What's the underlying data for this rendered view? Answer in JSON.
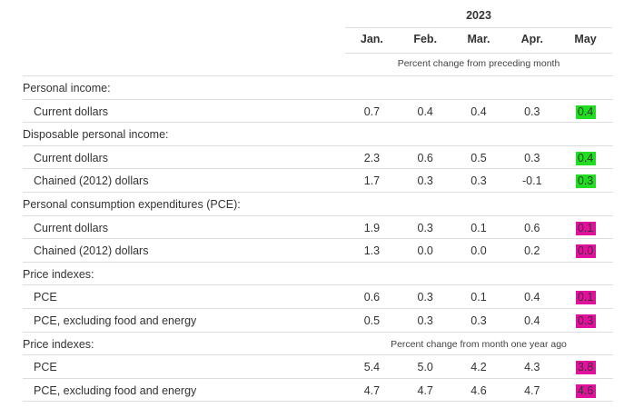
{
  "header": {
    "year": "2023",
    "months": [
      "Jan.",
      "Feb.",
      "Mar.",
      "Apr.",
      "May"
    ],
    "note_monthly": "Percent change from preceding month",
    "note_yearly": "Percent change from month one year ago"
  },
  "highlight_colors": {
    "up": "#22dd22",
    "down": "#e0129c"
  },
  "rows": [
    {
      "type": "category",
      "label": "Personal income:"
    },
    {
      "type": "item",
      "label": "Current dollars",
      "values": [
        "0.7",
        "0.4",
        "0.4",
        "0.3",
        "0.4"
      ],
      "highlight": "up"
    },
    {
      "type": "category",
      "label": "Disposable personal income:"
    },
    {
      "type": "item",
      "label": "Current dollars",
      "values": [
        "2.3",
        "0.6",
        "0.5",
        "0.3",
        "0.4"
      ],
      "highlight": "up"
    },
    {
      "type": "item",
      "label": "Chained (2012) dollars",
      "values": [
        "1.7",
        "0.3",
        "0.3",
        "-0.1",
        "0.3"
      ],
      "highlight": "up"
    },
    {
      "type": "category",
      "label": "Personal consumption expenditures (PCE):"
    },
    {
      "type": "item",
      "label": "Current dollars",
      "values": [
        "1.9",
        "0.3",
        "0.1",
        "0.6",
        "0.1"
      ],
      "highlight": "down"
    },
    {
      "type": "item",
      "label": "Chained (2012) dollars",
      "values": [
        "1.3",
        "0.0",
        "0.0",
        "0.2",
        "0.0"
      ],
      "highlight": "down"
    },
    {
      "type": "category",
      "label": "Price indexes:"
    },
    {
      "type": "item",
      "label": "PCE",
      "values": [
        "0.6",
        "0.3",
        "0.1",
        "0.4",
        "0.1"
      ],
      "highlight": "down"
    },
    {
      "type": "item",
      "label": "PCE, excluding food and energy",
      "values": [
        "0.5",
        "0.3",
        "0.3",
        "0.4",
        "0.3"
      ],
      "highlight": "down"
    },
    {
      "type": "category",
      "label": "Price indexes:"
    },
    {
      "type": "item",
      "label": "PCE",
      "values": [
        "5.4",
        "5.0",
        "4.2",
        "4.3",
        "3.8"
      ],
      "highlight": "down"
    },
    {
      "type": "item",
      "label": "PCE, excluding food and energy",
      "values": [
        "4.7",
        "4.7",
        "4.6",
        "4.7",
        "4.6"
      ],
      "highlight": "down"
    }
  ]
}
